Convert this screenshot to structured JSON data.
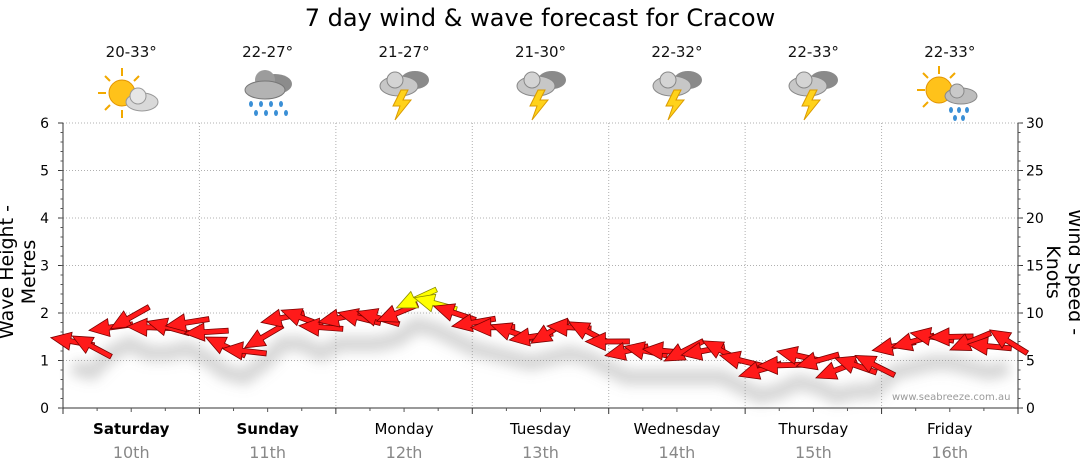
{
  "title": "7 day wind & wave forecast for Cracow",
  "watermark": "www.seabreeze.com.au",
  "days": [
    {
      "name": "Saturday",
      "date": "10th",
      "temp": "20-33°",
      "icon": "sun-cloud-icon",
      "bold": true
    },
    {
      "name": "Sunday",
      "date": "11th",
      "temp": "22-27°",
      "icon": "rain-cloud-icon",
      "bold": true
    },
    {
      "name": "Monday",
      "date": "12th",
      "temp": "21-27°",
      "icon": "thunderstorm-icon",
      "bold": false
    },
    {
      "name": "Tuesday",
      "date": "13th",
      "temp": "21-30°",
      "icon": "thunderstorm-icon",
      "bold": false
    },
    {
      "name": "Wednesday",
      "date": "14th",
      "temp": "22-32°",
      "icon": "thunderstorm-icon",
      "bold": false
    },
    {
      "name": "Thursday",
      "date": "15th",
      "temp": "22-33°",
      "icon": "thunderstorm-icon",
      "bold": false
    },
    {
      "name": "Friday",
      "date": "16th",
      "temp": "22-33°",
      "icon": "sun-shower-icon",
      "bold": false
    }
  ],
  "chart_data": {
    "type": "line",
    "ylabel_left": "Wave Height - Metres",
    "ylabel_right": "Wind Speed - Knots",
    "y_left_lim": [
      0,
      6
    ],
    "y_left_ticks": [
      "0",
      "1",
      "2",
      "3",
      "4",
      "5",
      "6"
    ],
    "y_right_lim": [
      0,
      30
    ],
    "y_right_ticks": [
      "0",
      "5",
      "10",
      "15",
      "20",
      "25",
      "30"
    ],
    "grid": true,
    "series": [
      {
        "axis": "right",
        "units": "knots",
        "hours_per_point": 3,
        "colors": {
          "normal": "#ff1a1a",
          "strong": "#ffff00"
        },
        "values": [
          7,
          6.5,
          8.5,
          9.5,
          8.5,
          8.5,
          9,
          8,
          6.5,
          6,
          7.5,
          9.5,
          9.5,
          8.5,
          9.5,
          9.5,
          9.5,
          10,
          11.5,
          11,
          10,
          9,
          8.5,
          8,
          7.5,
          8,
          8.5,
          8,
          7,
          6,
          6,
          6,
          6,
          6,
          6,
          5,
          4,
          4.5,
          5.5,
          5,
          4,
          4.5,
          4.5,
          6.5,
          7,
          7.5,
          7.5,
          7,
          6.5,
          7
        ]
      }
    ]
  }
}
